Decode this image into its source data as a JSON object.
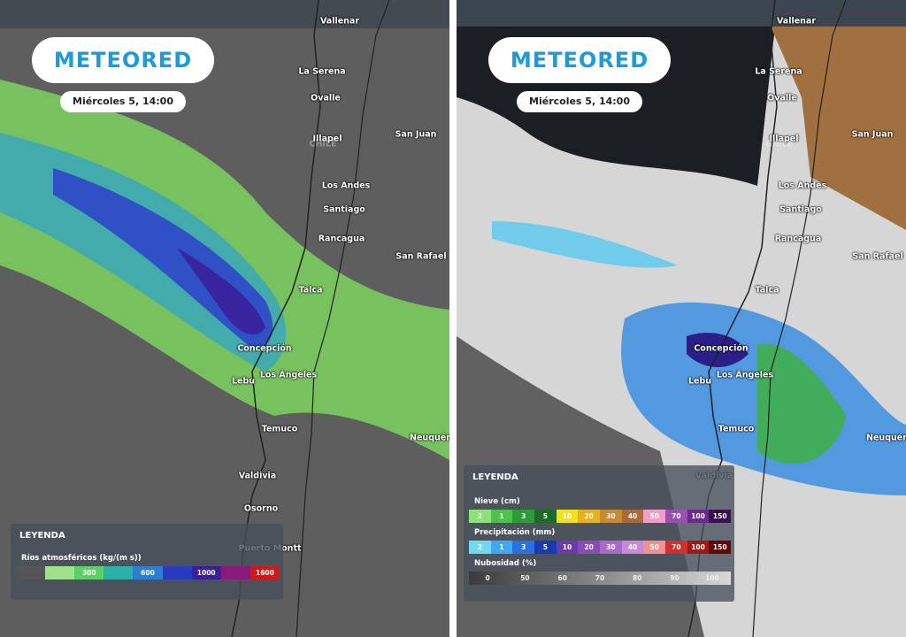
{
  "panels": [
    {
      "logo": "METEORED",
      "date": "Miércoles 5, 14:00",
      "cities": [
        "Vallenar",
        "La Serena",
        "Ovalle",
        "Illapel",
        "Chile",
        "San Juan",
        "Los Andes",
        "Santiago",
        "Rancagua",
        "San Rafael",
        "Talca",
        "Concepción",
        "Lebu",
        "Los Ángeles",
        "Temuco",
        "Neuquén",
        "Valdivia",
        "Osorno",
        "Puerto Montt"
      ],
      "legend": {
        "title": "LEYENDA",
        "scales": [
          {
            "name": "Ríos atmosféricos (kg/(m s))",
            "labels": [
              "300",
              "600",
              "1000",
              "1600"
            ]
          }
        ]
      }
    },
    {
      "logo": "METEORED",
      "date": "Miércoles 5, 14:00",
      "cities": [
        "Vallenar",
        "La Serena",
        "Ovalle",
        "Illapel",
        "Chile",
        "San Juan",
        "Los Andes",
        "Santiago",
        "Rancagua",
        "San Rafael",
        "Talca",
        "Concepción",
        "Lebu",
        "Los Ángeles",
        "Temuco",
        "Neuquén",
        "Valdivia"
      ],
      "legend": {
        "title": "LEYENDA",
        "scales": [
          {
            "name": "Nieve (cm)",
            "labels": [
              "2",
              "1",
              "3",
              "5",
              "10",
              "20",
              "30",
              "40",
              "50",
              "70",
              "100",
              "150"
            ]
          },
          {
            "name": "Precipitación (mm)",
            "labels": [
              "2",
              "1",
              "3",
              "5",
              "10",
              "20",
              "30",
              "40",
              "50",
              "70",
              "100",
              "150"
            ]
          },
          {
            "name": "Nubosidad (%)",
            "labels": [
              "0",
              "50",
              "60",
              "70",
              "80",
              "90",
              "100"
            ]
          }
        ]
      }
    }
  ]
}
